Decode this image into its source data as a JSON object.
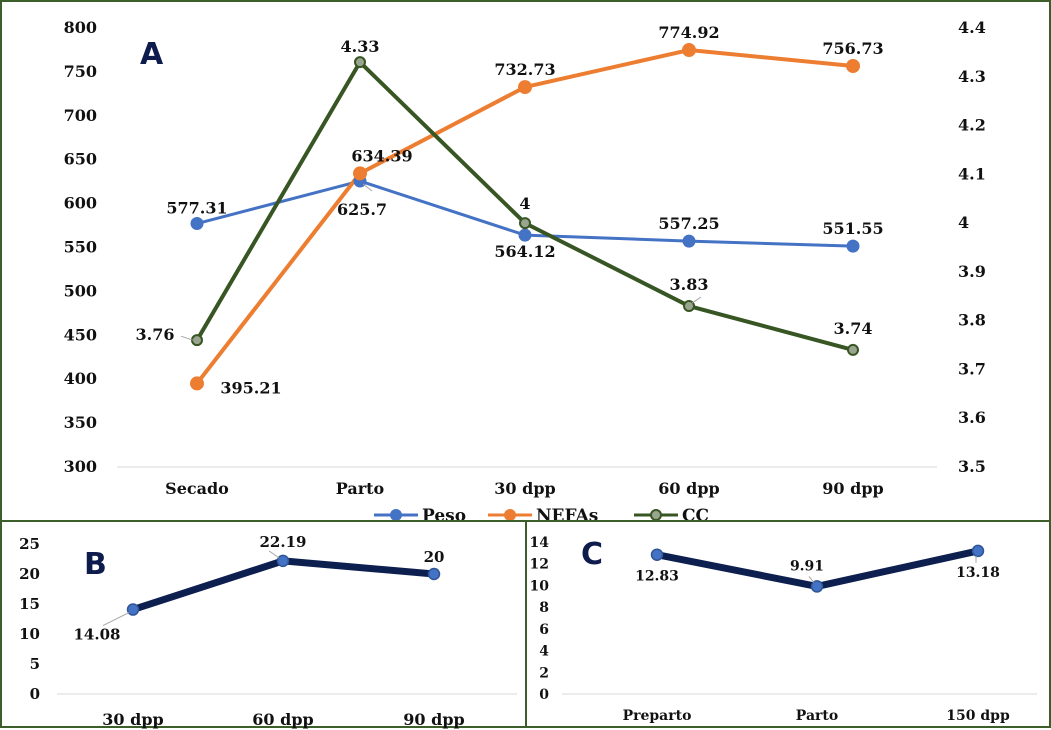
{
  "colors": {
    "peso": "#4472c4",
    "nefas": "#ed7d31",
    "cc": "#375623",
    "navy": "#0d1f4f",
    "border": "#3b5e2b"
  },
  "chart_data": [
    {
      "id": "A",
      "panel_label": "A",
      "type": "line",
      "categories": [
        "Secado",
        "Parto",
        "30 dpp",
        "60 dpp",
        "90 dpp"
      ],
      "ylim_left": [
        300,
        800
      ],
      "yticks_left": [
        "800",
        "750",
        "700",
        "650",
        "600",
        "550",
        "500",
        "450",
        "400",
        "350",
        "300"
      ],
      "ylim_right": [
        3.5,
        4.4
      ],
      "yticks_right": [
        "4.4",
        "4.3",
        "4.2",
        "4.1",
        "4",
        "3.9",
        "3.8",
        "3.7",
        "3.6",
        "3.5"
      ],
      "legend_position": "bottom",
      "series": [
        {
          "name": "Peso",
          "axis": "left",
          "values": [
            577.31,
            625.7,
            564.12,
            557.25,
            551.55
          ],
          "labels": [
            "577.31",
            "625.7",
            "564.12",
            "557.25",
            "551.55"
          ]
        },
        {
          "name": "NEFAs",
          "axis": "left",
          "values": [
            395.21,
            634.39,
            732.73,
            774.92,
            756.73
          ],
          "labels": [
            "395.21",
            "634.39",
            "732.73",
            "774.92",
            "756.73"
          ]
        },
        {
          "name": "CC",
          "axis": "right",
          "values": [
            3.76,
            4.33,
            4.0,
            3.83,
            3.74
          ],
          "labels": [
            "3.76",
            "4.33",
            "4",
            "3.83",
            "3.74"
          ]
        }
      ]
    },
    {
      "id": "B",
      "panel_label": "B",
      "type": "line",
      "categories": [
        "30 dpp",
        "60 dpp",
        "90 dpp"
      ],
      "ylim": [
        0,
        25
      ],
      "yticks": [
        "25",
        "20",
        "15",
        "10",
        "5",
        "0"
      ],
      "series": [
        {
          "values": [
            14.08,
            22.19,
            20
          ],
          "labels": [
            "14.08",
            "22.19",
            "20"
          ]
        }
      ]
    },
    {
      "id": "C",
      "panel_label": "C",
      "type": "line",
      "categories": [
        "Preparto",
        "Parto",
        "150 dpp"
      ],
      "ylim": [
        0,
        14
      ],
      "yticks": [
        "14",
        "12",
        "10",
        "8",
        "6",
        "4",
        "2",
        "0"
      ],
      "series": [
        {
          "values": [
            12.83,
            9.91,
            13.18
          ],
          "labels": [
            "12.83",
            "9.91",
            "13.18"
          ]
        }
      ]
    }
  ]
}
